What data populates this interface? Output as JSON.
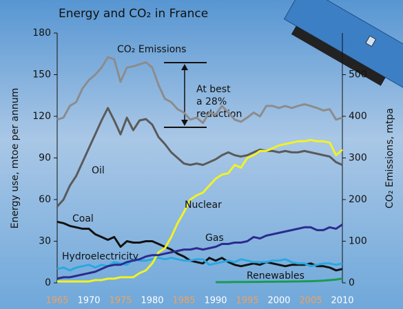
{
  "chart_data": {
    "type": "line",
    "title": "Energy and CO₂ in France",
    "y_label": "Energy use, mtoe per annum",
    "y2_label": "CO₂ Emissions, mtpa",
    "annotation": [
      "At best",
      "a 28%",
      "reduction"
    ],
    "x": [
      1965,
      1966,
      1967,
      1968,
      1969,
      1970,
      1971,
      1972,
      1973,
      1974,
      1975,
      1976,
      1977,
      1978,
      1979,
      1980,
      1981,
      1982,
      1983,
      1984,
      1985,
      1986,
      1987,
      1988,
      1989,
      1990,
      1991,
      1992,
      1993,
      1994,
      1995,
      1996,
      1997,
      1998,
      1999,
      2000,
      2001,
      2002,
      2003,
      2004,
      2005,
      2006,
      2007,
      2008,
      2009,
      2010
    ],
    "xlim": [
      1965,
      2010
    ],
    "xticks": [
      1965,
      1970,
      1975,
      1980,
      1985,
      1990,
      1995,
      2000,
      2005,
      2010
    ],
    "ylim": [
      0,
      180
    ],
    "yticks": [
      0,
      30,
      60,
      90,
      120,
      150,
      180
    ],
    "y2lim": [
      0,
      600
    ],
    "y2ticks": [
      0,
      100,
      200,
      300,
      400,
      500
    ],
    "series": [
      {
        "name": "CO₂ Emissions",
        "color": "#8c8c8c",
        "axis": "y2",
        "values": [
          392,
          397,
          425,
          434,
          467,
          487,
          500,
          517,
          542,
          537,
          483,
          517,
          520,
          525,
          530,
          517,
          475,
          442,
          434,
          417,
          409,
          392,
          397,
          384,
          409,
          404,
          425,
          409,
          392,
          387,
          397,
          409,
          400,
          425,
          425,
          420,
          425,
          420,
          425,
          429,
          425,
          420,
          414,
          417,
          392,
          397
        ]
      },
      {
        "name": "Oil",
        "color": "#5a5a5a",
        "values": [
          55,
          60,
          70,
          77,
          87,
          97,
          107,
          117,
          126,
          117,
          107,
          119,
          110,
          117,
          118,
          114,
          105,
          100,
          94,
          90,
          86,
          85,
          86,
          85,
          87,
          89,
          92,
          94,
          92,
          91,
          92,
          94,
          96,
          95,
          95,
          94,
          95,
          94,
          94,
          95,
          94,
          93,
          92,
          91,
          87,
          85
        ]
      },
      {
        "name": "Coal",
        "color": "#111111",
        "values": [
          44,
          43,
          41,
          40,
          39,
          39,
          35,
          33,
          31,
          33,
          26,
          30,
          29,
          29,
          30,
          30,
          28,
          26,
          24,
          21,
          19,
          16,
          15,
          14,
          18,
          16,
          18,
          15,
          13,
          12,
          13,
          14,
          13,
          15,
          14,
          13,
          12,
          13,
          13,
          13,
          14,
          12,
          12,
          11,
          9,
          10
        ]
      },
      {
        "name": "Hydroelectricity",
        "color": "#2aa8e2",
        "values": [
          10,
          11,
          9,
          11,
          12,
          13,
          11,
          13,
          12,
          15,
          14,
          13,
          17,
          16,
          16,
          17,
          18,
          17,
          18,
          17,
          16,
          16,
          17,
          17,
          13,
          14,
          15,
          16,
          15,
          17,
          16,
          15,
          15,
          15,
          16,
          16,
          17,
          15,
          14,
          14,
          12,
          13,
          14,
          14,
          13,
          14
        ]
      },
      {
        "name": "Nuclear",
        "color": "#f2f224",
        "values": [
          1,
          1,
          1,
          1,
          1,
          1,
          2,
          2,
          3,
          3,
          4,
          4,
          4,
          7,
          9,
          14,
          22,
          25,
          33,
          43,
          51,
          60,
          63,
          65,
          70,
          75,
          78,
          79,
          85,
          83,
          90,
          92,
          95,
          95,
          97,
          99,
          100,
          101,
          102,
          102,
          103,
          102,
          102,
          101,
          92,
          96
        ]
      },
      {
        "name": "Gas",
        "color": "#2b2b8e",
        "values": [
          3,
          4,
          4,
          5,
          6,
          7,
          8,
          10,
          12,
          13,
          13,
          15,
          16,
          17,
          19,
          20,
          20,
          21,
          22,
          23,
          24,
          24,
          25,
          24,
          25,
          26,
          28,
          28,
          29,
          29,
          30,
          33,
          32,
          34,
          35,
          36,
          37,
          38,
          39,
          40,
          40,
          38,
          38,
          40,
          39,
          42
        ]
      },
      {
        "name": "Renewables",
        "color": "#1a9a50",
        "values": [
          null,
          null,
          null,
          null,
          null,
          null,
          null,
          null,
          null,
          null,
          null,
          null,
          null,
          null,
          null,
          null,
          null,
          null,
          null,
          null,
          null,
          null,
          null,
          null,
          null,
          0.5,
          0.5,
          0.5,
          0.6,
          0.6,
          0.6,
          0.7,
          0.7,
          0.8,
          0.8,
          0.9,
          0.9,
          1,
          1,
          1.1,
          1.2,
          1.4,
          1.6,
          2,
          2.4,
          3
        ]
      }
    ]
  }
}
